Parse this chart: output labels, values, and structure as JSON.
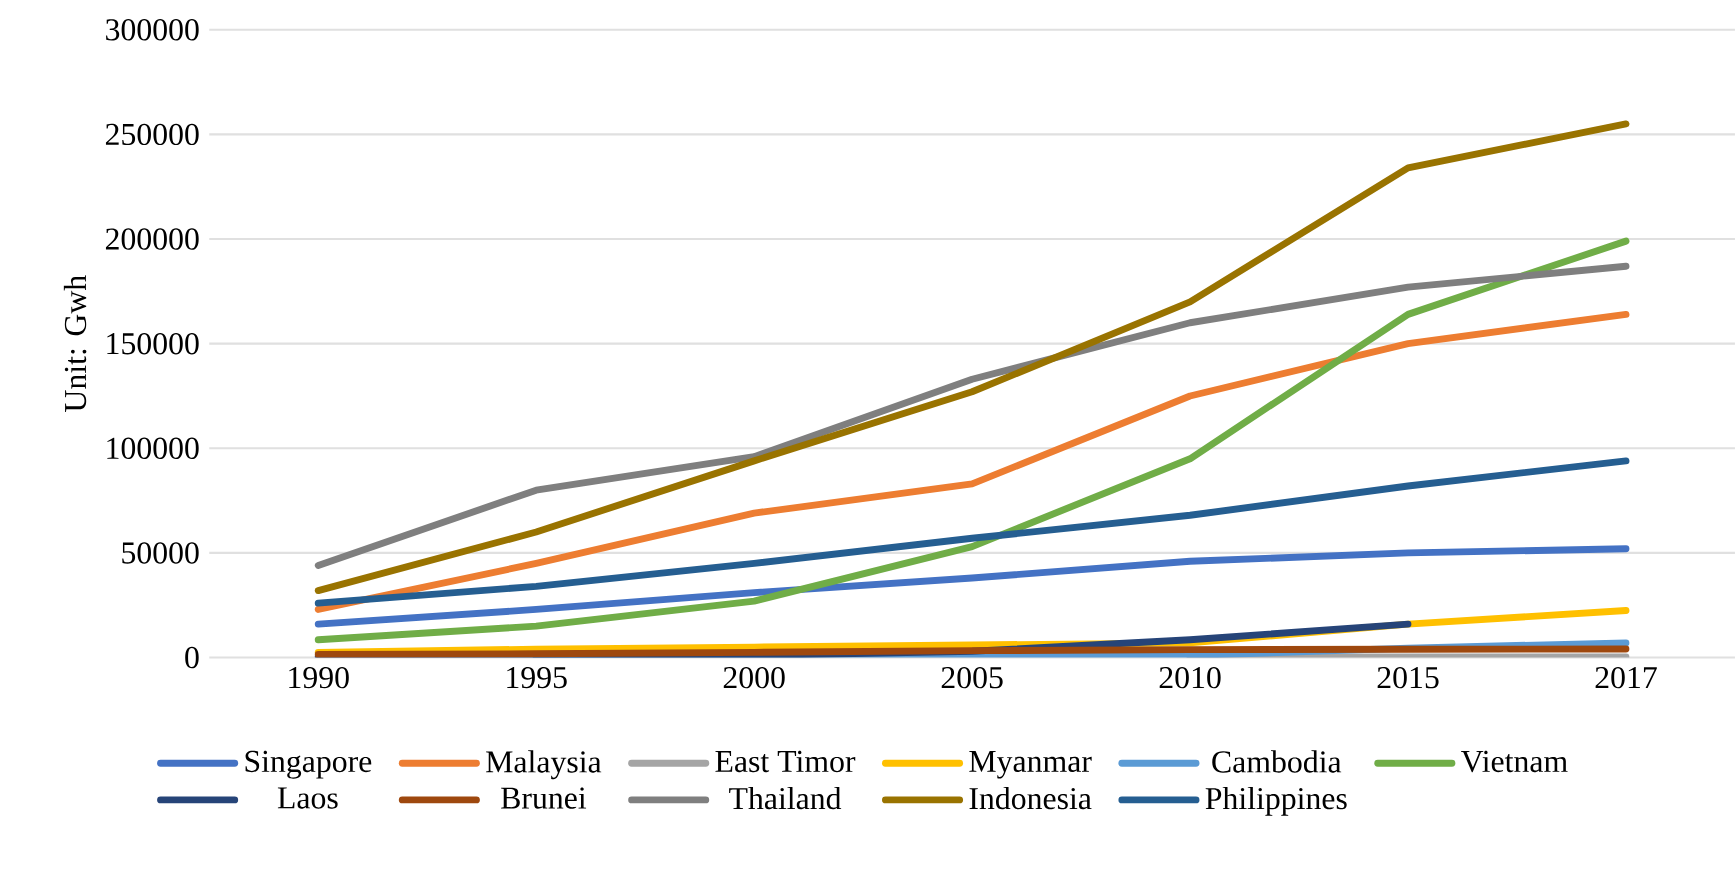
{
  "chart_data": {
    "type": "line",
    "ylabel": "Unit:  Gwh",
    "categories": [
      "1990",
      "1995",
      "2000",
      "2005",
      "2010",
      "2015",
      "2017"
    ],
    "ylim": [
      0,
      300000
    ],
    "yticks": [
      0,
      50000,
      100000,
      150000,
      200000,
      250000,
      300000
    ],
    "grid": "y",
    "legend": "bottom",
    "marker": "none",
    "line_style": "solid",
    "series": [
      {
        "name": "Singapore",
        "color": "#4472c4",
        "values": [
          16000,
          23000,
          31000,
          38000,
          46000,
          50000,
          52000
        ]
      },
      {
        "name": "Malaysia",
        "color": "#ed7d31",
        "values": [
          23000,
          45000,
          69000,
          83000,
          125000,
          150000,
          164000
        ]
      },
      {
        "name": "East Timor",
        "color": "#a5a5a5",
        "values": [
          null,
          null,
          null,
          null,
          200,
          300,
          300
        ]
      },
      {
        "name": "Myanmar",
        "color": "#ffc000",
        "values": [
          2500,
          4000,
          5000,
          6000,
          7000,
          16000,
          22500
        ]
      },
      {
        "name": "Cambodia",
        "color": "#5b9bd5",
        "values": [
          null,
          200,
          400,
          1000,
          1000,
          4500,
          7000
        ]
      },
      {
        "name": "Vietnam",
        "color": "#70ad47",
        "values": [
          8500,
          15000,
          27000,
          53000,
          95000,
          164000,
          199000
        ]
      },
      {
        "name": "Laos",
        "color": "#264478",
        "values": [
          500,
          700,
          1000,
          3000,
          8500,
          16000,
          null
        ]
      },
      {
        "name": "Brunei",
        "color": "#9e480e",
        "values": [
          1500,
          1800,
          2500,
          3300,
          3800,
          4000,
          4100
        ]
      },
      {
        "name": "Thailand",
        "color": "#7f7f7f",
        "values": [
          44000,
          80000,
          96000,
          133000,
          160000,
          177000,
          187000
        ]
      },
      {
        "name": "Indonesia",
        "color": "#997300",
        "values": [
          32000,
          60000,
          94000,
          127000,
          170000,
          234000,
          255000
        ]
      },
      {
        "name": "Philippines",
        "color": "#255e91",
        "values": [
          26000,
          34000,
          45000,
          57000,
          68000,
          82000,
          94000
        ]
      }
    ]
  }
}
